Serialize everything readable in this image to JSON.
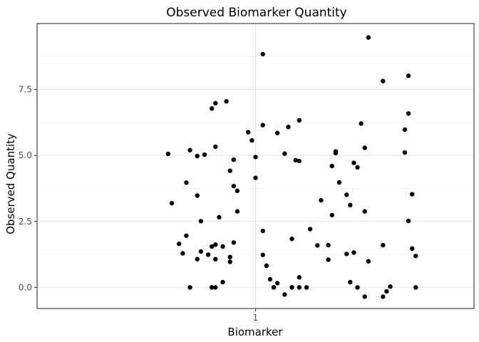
{
  "chart_data": {
    "type": "scatter",
    "title": "Observed Biomarker Quantity",
    "xlabel": "Biomarker",
    "ylabel": "Observed Quantity",
    "x_categories": [
      "1"
    ],
    "x_ticks": [
      {
        "value": 1,
        "label": "1"
      }
    ],
    "y_ticks": [
      {
        "value": 0,
        "label": "0.0"
      },
      {
        "value": 2.5,
        "label": "2.5"
      },
      {
        "value": 5,
        "label": "5.0"
      },
      {
        "value": 7.5,
        "label": "7.5"
      }
    ],
    "xlim": [
      0.4,
      1.6
    ],
    "ylim": [
      -0.8,
      10.0
    ],
    "grid": true,
    "theme": "bw",
    "point_color": "#000000",
    "points": [
      {
        "x": 0.76,
        "y": 5.06
      },
      {
        "x": 0.77,
        "y": 3.19
      },
      {
        "x": 0.79,
        "y": 1.65
      },
      {
        "x": 0.8,
        "y": 1.29
      },
      {
        "x": 0.81,
        "y": 3.97
      },
      {
        "x": 0.81,
        "y": 1.96
      },
      {
        "x": 0.82,
        "y": 5.2
      },
      {
        "x": 0.82,
        "y": 0.0
      },
      {
        "x": 0.84,
        "y": 1.07
      },
      {
        "x": 0.84,
        "y": 4.98
      },
      {
        "x": 0.84,
        "y": 3.48
      },
      {
        "x": 0.85,
        "y": 2.51
      },
      {
        "x": 0.85,
        "y": 1.36
      },
      {
        "x": 0.86,
        "y": 5.03
      },
      {
        "x": 0.87,
        "y": 1.24
      },
      {
        "x": 0.88,
        "y": 6.78
      },
      {
        "x": 0.88,
        "y": 0.0
      },
      {
        "x": 0.88,
        "y": 1.55
      },
      {
        "x": 0.89,
        "y": 1.62
      },
      {
        "x": 0.89,
        "y": 6.98
      },
      {
        "x": 0.89,
        "y": 5.33
      },
      {
        "x": 0.89,
        "y": 1.07
      },
      {
        "x": 0.89,
        "y": 0.0
      },
      {
        "x": 0.9,
        "y": 2.66
      },
      {
        "x": 0.91,
        "y": 1.55
      },
      {
        "x": 0.91,
        "y": 0.2
      },
      {
        "x": 0.92,
        "y": 7.05
      },
      {
        "x": 0.93,
        "y": 4.42
      },
      {
        "x": 0.93,
        "y": 1.15
      },
      {
        "x": 0.93,
        "y": 0.97
      },
      {
        "x": 0.94,
        "y": 4.84
      },
      {
        "x": 0.94,
        "y": 1.7
      },
      {
        "x": 0.94,
        "y": 3.84
      },
      {
        "x": 0.95,
        "y": 2.88
      },
      {
        "x": 0.95,
        "y": 3.66
      },
      {
        "x": 0.98,
        "y": 5.88
      },
      {
        "x": 0.99,
        "y": 5.57
      },
      {
        "x": 1.0,
        "y": 4.15
      },
      {
        "x": 1.0,
        "y": 4.94
      },
      {
        "x": 1.02,
        "y": 2.14
      },
      {
        "x": 1.02,
        "y": 8.84
      },
      {
        "x": 1.02,
        "y": 6.15
      },
      {
        "x": 1.02,
        "y": 1.23
      },
      {
        "x": 1.03,
        "y": 0.82
      },
      {
        "x": 1.04,
        "y": 0.31
      },
      {
        "x": 1.05,
        "y": 0.0
      },
      {
        "x": 1.05,
        "y": 0.0
      },
      {
        "x": 1.06,
        "y": 0.16
      },
      {
        "x": 1.06,
        "y": 5.85
      },
      {
        "x": 1.08,
        "y": -0.27
      },
      {
        "x": 1.08,
        "y": 5.07
      },
      {
        "x": 1.09,
        "y": 6.08
      },
      {
        "x": 1.1,
        "y": 1.84
      },
      {
        "x": 1.1,
        "y": 0.0
      },
      {
        "x": 1.11,
        "y": 4.82
      },
      {
        "x": 1.12,
        "y": 6.33
      },
      {
        "x": 1.12,
        "y": 4.79
      },
      {
        "x": 1.12,
        "y": 0.38
      },
      {
        "x": 1.12,
        "y": 0.0
      },
      {
        "x": 1.14,
        "y": 0.0
      },
      {
        "x": 1.15,
        "y": 2.21
      },
      {
        "x": 1.17,
        "y": 1.59
      },
      {
        "x": 1.18,
        "y": 3.3
      },
      {
        "x": 1.2,
        "y": 1.05
      },
      {
        "x": 1.2,
        "y": 1.6
      },
      {
        "x": 1.21,
        "y": 2.74
      },
      {
        "x": 1.21,
        "y": 4.6
      },
      {
        "x": 1.22,
        "y": 5.09
      },
      {
        "x": 1.22,
        "y": 5.15
      },
      {
        "x": 1.23,
        "y": 3.98
      },
      {
        "x": 1.25,
        "y": 1.27
      },
      {
        "x": 1.25,
        "y": 3.51
      },
      {
        "x": 1.26,
        "y": 3.12
      },
      {
        "x": 1.26,
        "y": 0.2
      },
      {
        "x": 1.27,
        "y": 1.32
      },
      {
        "x": 1.27,
        "y": 4.72
      },
      {
        "x": 1.28,
        "y": 4.55
      },
      {
        "x": 1.28,
        "y": 0.0
      },
      {
        "x": 1.29,
        "y": 6.21
      },
      {
        "x": 1.3,
        "y": 5.29
      },
      {
        "x": 1.3,
        "y": 2.88
      },
      {
        "x": 1.3,
        "y": -0.35
      },
      {
        "x": 1.31,
        "y": 9.47
      },
      {
        "x": 1.31,
        "y": 0.99
      },
      {
        "x": 1.35,
        "y": 1.6
      },
      {
        "x": 1.35,
        "y": -0.35
      },
      {
        "x": 1.35,
        "y": 7.82
      },
      {
        "x": 1.36,
        "y": -0.15
      },
      {
        "x": 1.37,
        "y": 0.03
      },
      {
        "x": 1.41,
        "y": 5.11
      },
      {
        "x": 1.41,
        "y": 5.98
      },
      {
        "x": 1.42,
        "y": 2.52
      },
      {
        "x": 1.42,
        "y": 8.02
      },
      {
        "x": 1.42,
        "y": 6.59
      },
      {
        "x": 1.43,
        "y": 1.47
      },
      {
        "x": 1.43,
        "y": 3.53
      },
      {
        "x": 1.44,
        "y": 1.19
      },
      {
        "x": 1.44,
        "y": 0.0
      }
    ]
  }
}
